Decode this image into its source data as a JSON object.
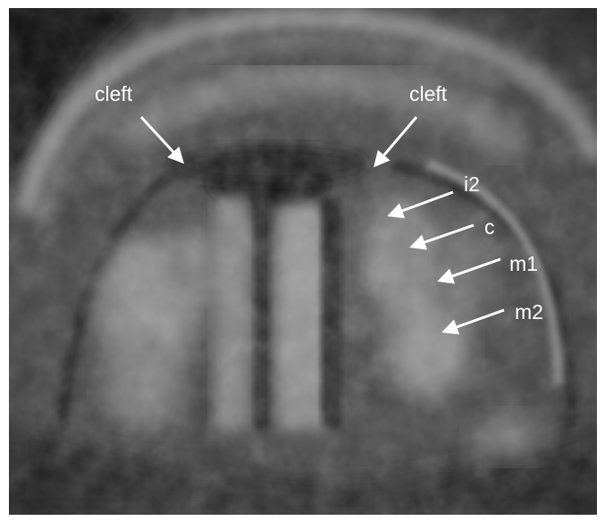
{
  "annotations": {
    "labels": [
      {
        "id": "cleft-left",
        "text": "cleft"
      },
      {
        "id": "cleft-right",
        "text": "cleft"
      },
      {
        "id": "i2",
        "text": "i2"
      },
      {
        "id": "c",
        "text": "c"
      },
      {
        "id": "m1",
        "text": "m1"
      },
      {
        "id": "m2",
        "text": "m2"
      }
    ]
  },
  "colors": {
    "annotation": "#ffffff",
    "border": "#ffffff"
  }
}
